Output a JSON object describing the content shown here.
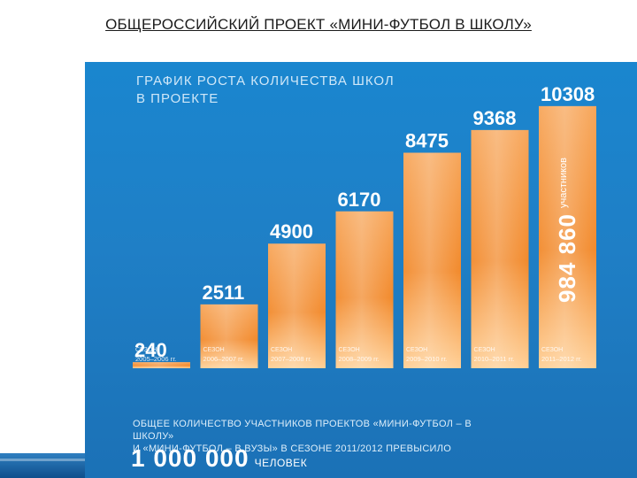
{
  "slide": {
    "title": "ОБЩЕРОССИЙСКИЙ ПРОЕКТ «МИНИ-ФУТБОЛ В ШКОЛУ»"
  },
  "chart_data": {
    "type": "bar",
    "title": "ГРАФИК РОСТА КОЛИЧЕСТВА ШКОЛ В ПРОЕКТЕ",
    "season_label": "СЕЗОН",
    "categories": [
      "2005–2006 гг.",
      "2006–2007 гг.",
      "2007–2008 гг.",
      "2008–2009 гг.",
      "2009–2010 гг.",
      "2010–2011 гг.",
      "2011–2012 гг."
    ],
    "values": [
      240,
      2511,
      4900,
      6170,
      8475,
      9368,
      10308
    ],
    "value_labels": [
      "240",
      "2511",
      "4900",
      "6170",
      "8475",
      "9368",
      "10308"
    ],
    "ylim": [
      0,
      11000
    ],
    "grid": false,
    "colors": {
      "bar_top": "#f7a65a",
      "bar_mid": "#f28a2c",
      "bar_bottom": "#ffcf95",
      "label": "#ffffff"
    },
    "annotation": {
      "value": "984 860",
      "unit": "участников"
    }
  },
  "footer": {
    "line1": "ОБЩЕЕ КОЛИЧЕСТВО УЧАСТНИКОВ ПРОЕКТОВ «МИНИ-ФУТБОЛ – В ШКОЛУ»",
    "line2": "И «МИНИ-ФУТБОЛ – В ВУЗЫ» В СЕЗОНЕ 2011/2012 ПРЕВЫСИЛО",
    "total": "1 000 000",
    "unit": "ЧЕЛОВЕК"
  }
}
